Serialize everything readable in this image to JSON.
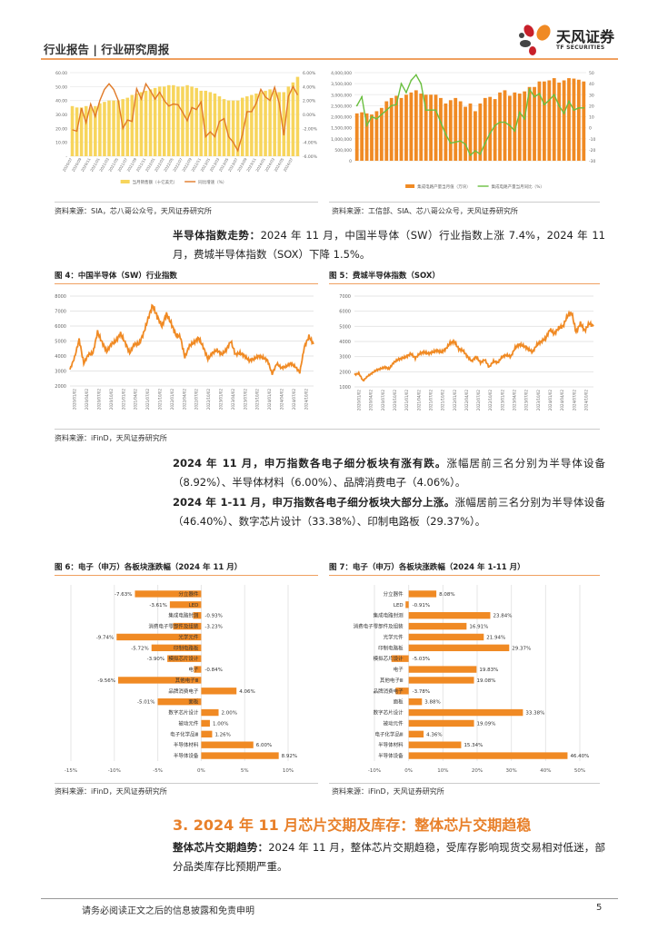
{
  "header": {
    "title": "行业报告 | 行业研究周报",
    "logo_cn": "天风证券",
    "logo_en": "TF SECURITIES"
  },
  "colors": {
    "accent": "#e8802a",
    "bar_orange": "#f08a24",
    "bar_yellow": "#f7d55c",
    "line_green": "#6abf40"
  },
  "fig_top_left": {
    "source": "资料来源：SIA，芯八哥公众号，天风证券研究所"
  },
  "fig_top_right": {
    "source": "资料来源：工信部、SIA、芯八哥公众号，天风证券研究所"
  },
  "para1": {
    "bold": "半导体指数走势：",
    "text": "2024 年 11 月，中国半导体（SW）行业指数上涨 7.4%，2024 年 11 月，费城半导体指数（SOX）下降 1.5%。"
  },
  "fig4": {
    "title": "图 4：中国半导体（SW）行业指数",
    "source": "资料来源：iFinD，天风证券研究所"
  },
  "fig5": {
    "title": "图 5：费城半导体指数（SOX）"
  },
  "para2": {
    "bold": "2024 年 11 月，申万指数各电子细分板块有涨有跌。",
    "text": "涨幅居前三名分别为半导体设备（8.92%）、半导体材料（6.00%）、品牌消费电子（4.06%）。"
  },
  "para3": {
    "bold": "2024 年 1-11 月，申万指数各电子细分板块大部分上涨。",
    "text": "涨幅居前三名分别为半导体设备（46.40%）、数字芯片设计（33.38%）、印制电路板（29.37%）。"
  },
  "fig6": {
    "title": "图 6：电子（申万）各板块涨跌幅（2024 年 11 月）",
    "source": "资料来源：iFinD，天风证券研究所"
  },
  "fig7": {
    "title": "图 7：电子（申万）各板块涨跌幅（2024 年 1-11 月）",
    "source": "资料来源：iFinD，天风证券研究所"
  },
  "section": {
    "title": "3. 2024 年 11 月芯片交期及库存：整体芯片交期趋稳"
  },
  "para4": {
    "bold": "整体芯片交期趋势：",
    "text": "2024 年 11 月，整体芯片交期趋稳，受库存影响现货交易相对低迷，部分品类库存比预期严重。"
  },
  "footer": {
    "disclaimer": "请务必阅读正文之后的信息披露和免责申明",
    "page": "5"
  },
  "chart_data": [
    {
      "type": "bar+line",
      "ylim": [
        0,
        60
      ],
      "y2lim": [
        -6,
        6
      ],
      "yticks": [
        "-",
        "10.00",
        "20.00",
        "30.00",
        "40.00",
        "50.00",
        "60.00"
      ],
      "y2ticks": [
        "-6.00%",
        "-4.00%",
        "-2.00%",
        "0.00%",
        "2.00%",
        "4.00%",
        "6.00%"
      ],
      "x_tick_labels": [
        "2020/07",
        "2020/09",
        "2020/11",
        "2021/01",
        "2021/03",
        "2021/05",
        "2021/07",
        "2021/09",
        "2021/11",
        "2022/01",
        "2022/03",
        "2022/05",
        "2022/07",
        "2022/09",
        "2022/11",
        "2023/01",
        "2023/03",
        "2023/05",
        "2023/07",
        "2023/09",
        "2023/11",
        "2024/01",
        "2024/03",
        "2024/05",
        "2024/07"
      ],
      "series": [
        {
          "name": "当月销售额（十亿美元）",
          "type": "bar",
          "values": [
            36,
            35,
            35,
            36,
            35,
            36,
            38,
            39,
            40,
            40,
            40,
            41,
            42,
            44,
            45,
            46,
            47,
            48,
            49,
            50,
            50,
            51,
            51,
            50,
            50,
            51,
            50,
            49,
            47,
            47,
            46,
            45,
            43,
            41,
            40,
            40,
            40,
            42,
            43,
            44,
            45,
            46,
            47,
            48,
            47,
            46,
            46,
            50,
            53,
            57
          ]
        },
        {
          "name": "同比增速（%）",
          "type": "line",
          "values": [
            -2.2,
            -2.4,
            0.9,
            -1.2,
            1.5,
            -0.3,
            2.0,
            3.6,
            4.4,
            3.6,
            2.0,
            -2.0,
            -0.8,
            -1.0,
            3.7,
            2.2,
            4.4,
            3.4,
            2.2,
            3.2,
            2.0,
            1.2,
            1.5,
            1.4,
            0.3,
            -0.9,
            1.0,
            0.7,
            1.8,
            -3.2,
            -2.5,
            -3.2,
            -1.0,
            -0.6,
            -3.2,
            -4.0,
            -5.2,
            -2.9,
            0.4,
            0.4,
            1.6,
            3.6,
            2.5,
            2.0,
            3.9,
            1.6,
            -3.0,
            2.6,
            4.0,
            2.8
          ]
        }
      ]
    },
    {
      "type": "bar+line",
      "ylim": [
        0,
        4000000
      ],
      "y2lim": [
        -30,
        50
      ],
      "yticks": [
        "0",
        "500,000",
        "1,000,000",
        "1,500,000",
        "2,000,000",
        "2,500,000",
        "3,000,000",
        "3,500,000",
        "4,000,000"
      ],
      "y2ticks": [
        "-30",
        "-20",
        "-10",
        "0",
        "10",
        "20",
        "30",
        "40",
        "50"
      ],
      "series": [
        {
          "name": "集成电路产量当月值（万块）",
          "type": "bar",
          "values": [
            2150000,
            2200000,
            2150000,
            2100000,
            2250000,
            2400000,
            2700000,
            2850000,
            2950000,
            2850000,
            3000000,
            3100000,
            3200000,
            3050000,
            3000000,
            3000000,
            3000000,
            2850000,
            2600000,
            2750000,
            2850000,
            2700000,
            2450000,
            2600000,
            2250000,
            2600000,
            2850000,
            2900000,
            2800000,
            3100000,
            3200000,
            2950000,
            3100000,
            3050000,
            3150000,
            3350000,
            3350000,
            3600000,
            3600000,
            3650000,
            3750000,
            3550000,
            3650000,
            3750000,
            3730000,
            3680000,
            3600000
          ]
        },
        {
          "name": "集成电路产量当月同比（%）",
          "type": "line",
          "values": [
            20,
            28,
            2,
            10,
            8,
            12,
            16,
            20,
            21,
            40,
            32,
            43,
            48,
            40,
            16,
            16,
            16,
            5,
            -6,
            -14,
            -13,
            -12,
            -15,
            -25,
            -21,
            -24,
            -14,
            -5,
            2,
            5,
            5,
            2,
            -3,
            14,
            8,
            35,
            28,
            31,
            21,
            25,
            30,
            20,
            13,
            24,
            16,
            18,
            18
          ]
        }
      ]
    },
    {
      "type": "line",
      "ylim": [
        2000,
        8000
      ],
      "yticks": [
        "2000",
        "3000",
        "4000",
        "5000",
        "6000",
        "7000",
        "8000"
      ],
      "x_tick_labels": [
        "2020/01/02",
        "2020/04/02",
        "2020/07/02",
        "2020/10/02",
        "2021/01/02",
        "2021/04/02",
        "2021/07/02",
        "2021/10/02",
        "2022/01/02",
        "2022/04/02",
        "2022/07/02",
        "2022/10/02",
        "2023/01/02",
        "2023/04/02",
        "2023/07/02",
        "2023/10/02",
        "2024/01/02",
        "2024/04/02",
        "2024/07/02",
        "2024/10/02"
      ],
      "values": [
        3100,
        3900,
        5100,
        3500,
        4100,
        4200,
        5600,
        4900,
        4300,
        4800,
        5000,
        5500,
        4900,
        4200,
        4800,
        4800,
        5500,
        6500,
        7400,
        6600,
        6000,
        6800,
        6200,
        5400,
        5300,
        3900,
        4700,
        4900,
        5200,
        4600,
        3800,
        4200,
        4400,
        4100,
        4400,
        5000,
        4100,
        4200,
        4000,
        3700,
        3800,
        4000,
        3900,
        3700,
        2800,
        3500,
        3200,
        3300,
        3500,
        3300,
        2900,
        4600,
        5300,
        4800
      ]
    },
    {
      "type": "line",
      "ylim": [
        1000,
        7000
      ],
      "yticks": [
        "1000",
        "2000",
        "3000",
        "4000",
        "5000",
        "6000",
        "7000"
      ],
      "x_tick_labels": [
        "2020/01/02",
        "2020/04/02",
        "2020/07/02",
        "2020/10/02",
        "2021/01/02",
        "2021/04/02",
        "2021/07/02",
        "2021/10/02",
        "2022/01/02",
        "2022/04/02",
        "2022/07/02",
        "2022/10/02",
        "2023/01/02",
        "2023/04/02",
        "2023/07/02",
        "2023/10/02",
        "2024/01/02",
        "2024/04/02",
        "2024/07/02",
        "2024/10/02"
      ],
      "values": [
        1800,
        1900,
        1400,
        1700,
        1900,
        2100,
        2200,
        2300,
        2200,
        2600,
        2800,
        2900,
        3000,
        3200,
        2900,
        3200,
        3300,
        3200,
        3300,
        3400,
        3300,
        3500,
        3900,
        4000,
        3500,
        3400,
        3000,
        2700,
        3000,
        2600,
        2800,
        2300,
        2700,
        2600,
        3000,
        3100,
        3000,
        3600,
        3800,
        3700,
        3500,
        3300,
        3800,
        4000,
        4200,
        4800,
        4500,
        4900,
        5000,
        5700,
        5900,
        4600,
        5200,
        4700,
        5200,
        5000
      ]
    },
    {
      "type": "bar",
      "orientation": "horizontal",
      "xlim": [
        -15,
        10
      ],
      "xticks": [
        "-15%",
        "-10%",
        "-5%",
        "0%",
        "5%",
        "10%"
      ],
      "categories": [
        "分立器件",
        "LED",
        "集成电路封测",
        "消费电子零部件及组装",
        "光学元件",
        "印制电路板",
        "模拟芯片设计",
        "电子",
        "其他电子Ⅲ",
        "品牌消费电子",
        "面板",
        "数字芯片设计",
        "被动元件",
        "电子化学品Ⅲ",
        "半导体材料",
        "半导体设备"
      ],
      "values": [
        -7.63,
        -3.61,
        -0.93,
        -3.23,
        -9.74,
        -5.72,
        -3.9,
        -0.84,
        -9.56,
        4.06,
        -5.01,
        2.0,
        1.0,
        1.26,
        6.0,
        8.92
      ],
      "labels": [
        "-7.63%",
        "-3.61%",
        "-0.93%",
        "-3.23%",
        "-9.74%",
        "-5.72%",
        "-3.90%",
        "-0.84%",
        "-9.56%",
        "4.06%",
        "-5.01%",
        "2.00%",
        "1.00%",
        "1.26%",
        "6.00%",
        "8.92%"
      ]
    },
    {
      "type": "bar",
      "orientation": "horizontal",
      "xlim": [
        -10,
        50
      ],
      "xticks": [
        "-10%",
        "0%",
        "10%",
        "20%",
        "30%",
        "40%",
        "50%"
      ],
      "categories": [
        "分立器件",
        "LED",
        "集成电路封测",
        "消费电子零部件及组装",
        "光学元件",
        "印制电路板",
        "模拟芯片设计",
        "电子",
        "其他电子Ⅲ",
        "品牌消费电子",
        "面板",
        "数字芯片设计",
        "被动元件",
        "电子化学品Ⅲ",
        "半导体材料",
        "半导体设备"
      ],
      "values": [
        8.08,
        -0.91,
        23.84,
        16.91,
        21.94,
        29.37,
        -5.03,
        19.83,
        19.08,
        -3.78,
        3.88,
        33.38,
        19.09,
        4.36,
        15.34,
        46.4
      ],
      "labels": [
        "8.08%",
        "-0.91%",
        "23.84%",
        "16.91%",
        "21.94%",
        "29.37%",
        "-5.03%",
        "19.83%",
        "19.08%",
        "-3.78%",
        "3.88%",
        "33.38%",
        "19.09%",
        "4.36%",
        "15.34%",
        "46.40%"
      ]
    }
  ]
}
